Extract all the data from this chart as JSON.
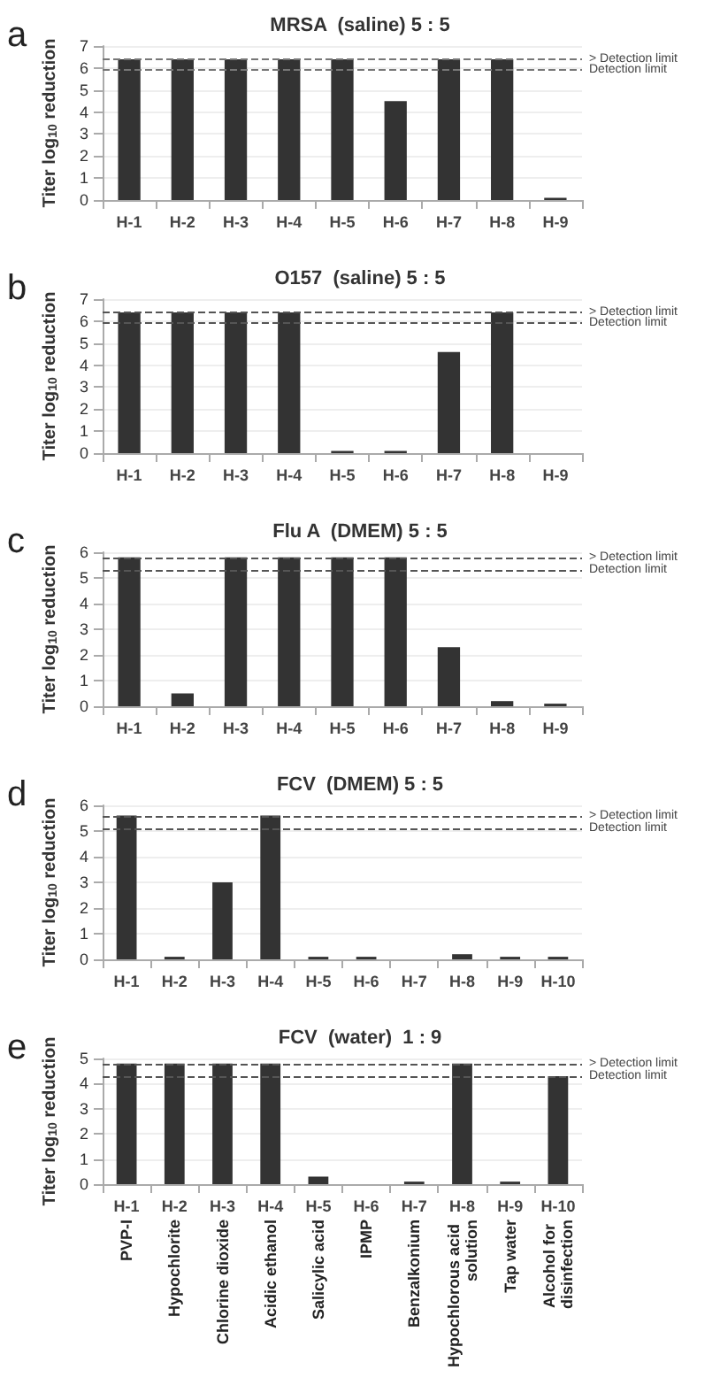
{
  "chart_data": [
    {
      "type": "bar",
      "title": "MRSA  (saline) 5 : 5",
      "ylabel": "Titer log$_{10}$ reduction",
      "annotations": [
        "a"
      ],
      "categories": [
        "H-1",
        "H-2",
        "H-3",
        "H-4",
        "H-5",
        "H-6",
        "H-7",
        "H-8",
        "H-9"
      ],
      "values": [
        6.4,
        6.4,
        6.4,
        6.4,
        6.4,
        4.5,
        6.4,
        6.4,
        0.1
      ],
      "color": "#333333",
      "ylim": [
        0,
        7
      ],
      "yticks": [
        0,
        1,
        2,
        3,
        4,
        5,
        6,
        7
      ],
      "grid": "y",
      "ref_lines": [
        {
          "axis": "y",
          "value": 6.4,
          "label": "> Detection limit",
          "line_style": "dashed",
          "color": "#777777"
        },
        {
          "axis": "y",
          "value": 5.9,
          "label": "Detection limit",
          "line_style": "dashed",
          "color": "#777777"
        }
      ]
    },
    {
      "type": "bar",
      "title": "O157  (saline) 5 : 5",
      "ylabel": "Titer log$_{10}$ reduction",
      "annotations": [
        "b"
      ],
      "categories": [
        "H-1",
        "H-2",
        "H-3",
        "H-4",
        "H-5",
        "H-6",
        "H-7",
        "H-8",
        "H-9"
      ],
      "values": [
        6.4,
        6.4,
        6.4,
        6.4,
        0.1,
        0.1,
        4.6,
        6.4,
        0
      ],
      "color": "#333333",
      "ylim": [
        0,
        7
      ],
      "yticks": [
        0,
        1,
        2,
        3,
        4,
        5,
        6,
        7
      ],
      "grid": "y",
      "ref_lines": [
        {
          "axis": "y",
          "value": 6.4,
          "label": "> Detection limit",
          "line_style": "dashed",
          "color": "#555555"
        },
        {
          "axis": "y",
          "value": 5.9,
          "label": "Detection limit",
          "line_style": "dashed",
          "color": "#555555"
        }
      ]
    },
    {
      "type": "bar",
      "title": "Flu A  (DMEM) 5 : 5",
      "ylabel": "Titer log$_{10}$ reduction",
      "annotations": [
        "c"
      ],
      "categories": [
        "H-1",
        "H-2",
        "H-3",
        "H-4",
        "H-5",
        "H-6",
        "H-7",
        "H-8",
        "H-9"
      ],
      "values": [
        5.8,
        0.5,
        5.8,
        5.8,
        5.8,
        5.8,
        2.3,
        0.2,
        0.1
      ],
      "color": "#333333",
      "ylim": [
        0,
        6
      ],
      "yticks": [
        0,
        1,
        2,
        3,
        4,
        5,
        6
      ],
      "grid": "y",
      "ref_lines": [
        {
          "axis": "y",
          "value": 5.8,
          "label": "> Detection limit",
          "line_style": "dashed",
          "color": "#555555"
        },
        {
          "axis": "y",
          "value": 5.3,
          "label": "Detection limit",
          "line_style": "dashed",
          "color": "#555555"
        }
      ]
    },
    {
      "type": "bar",
      "title": "FCV  (DMEM) 5 : 5",
      "ylabel": "Titer log$_{10}$ reduction",
      "annotations": [
        "d"
      ],
      "categories": [
        "H-1",
        "H-2",
        "H-3",
        "H-4",
        "H-5",
        "H-6",
        "H-7",
        "H-8",
        "H-9",
        "H-10"
      ],
      "values": [
        5.6,
        0.1,
        3,
        5.6,
        0.1,
        0.1,
        0,
        0.2,
        0.1,
        0.1
      ],
      "color": "#333333",
      "ylim": [
        0,
        6
      ],
      "yticks": [
        0,
        1,
        2,
        3,
        4,
        5,
        6
      ],
      "grid": "y",
      "ref_lines": [
        {
          "axis": "y",
          "value": 5.6,
          "label": "> Detection limit",
          "line_style": "dashed",
          "color": "#555555"
        },
        {
          "axis": "y",
          "value": 5.1,
          "label": "Detection limit",
          "line_style": "dashed",
          "color": "#555555"
        }
      ]
    },
    {
      "type": "bar",
      "title": "FCV  (water)  1 : 9",
      "ylabel": "Titer log$_{10}$ reduction",
      "annotations": [
        "e",
        "PVP-I",
        "Hypochlorite",
        "Chlorine dioxide",
        "Acidic ethanol",
        "Salicylic acid",
        "IPMP",
        "Benzalkonium",
        "Hypochlorous acid solution",
        "Tap water",
        "Alcohol for disinfection"
      ],
      "categories": [
        "H-1",
        "H-2",
        "H-3",
        "H-4",
        "H-5",
        "H-6",
        "H-7",
        "H-8",
        "H-9",
        "H-10"
      ],
      "values": [
        4.8,
        4.8,
        4.8,
        4.8,
        0.3,
        0,
        0.1,
        4.8,
        0.1,
        4.3
      ],
      "color": "#333333",
      "ylim": [
        0,
        5
      ],
      "yticks": [
        0,
        1,
        2,
        3,
        4,
        5
      ],
      "grid": "y",
      "ref_lines": [
        {
          "axis": "y",
          "value": 4.8,
          "label": "> Detection limit",
          "line_style": "dashed",
          "color": "#555555"
        },
        {
          "axis": "y",
          "value": 4.3,
          "label": "Detection limit",
          "line_style": "dashed",
          "color": "#555555"
        }
      ]
    }
  ]
}
